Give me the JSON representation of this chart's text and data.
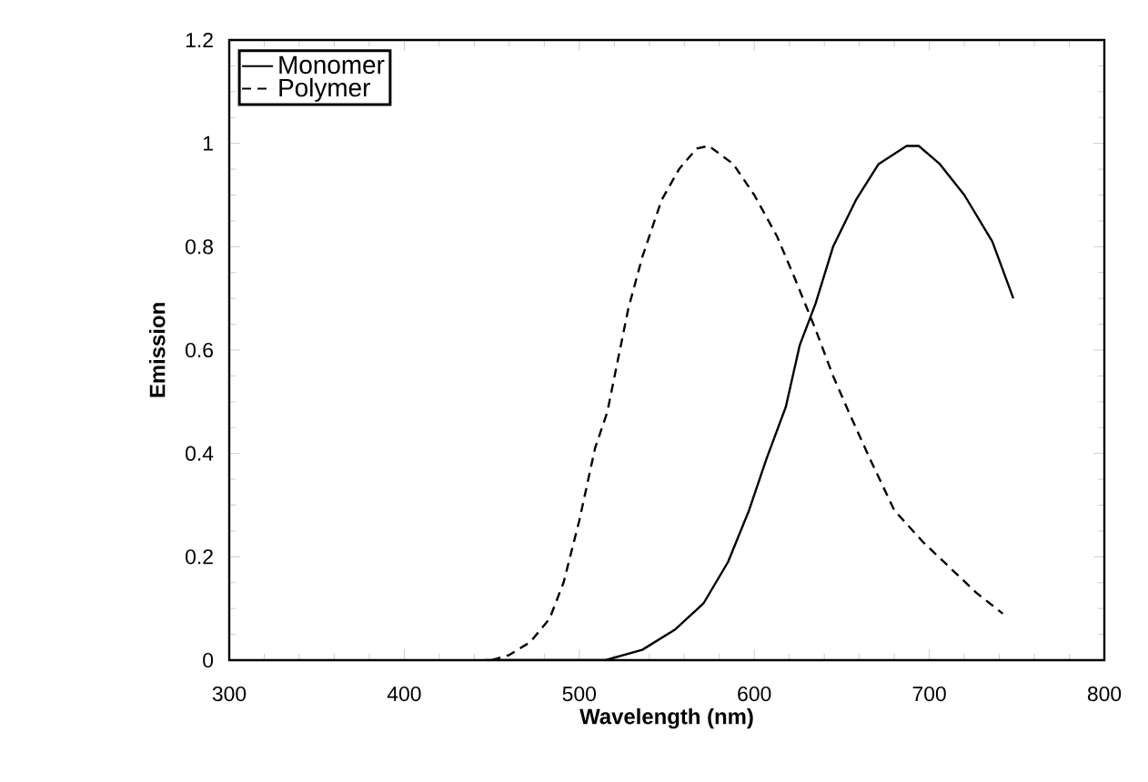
{
  "chart_data": {
    "type": "line",
    "xlabel": "Wavelength  (nm)",
    "ylabel": "Emission",
    "xlim": [
      300,
      800
    ],
    "ylim": [
      0,
      1.2
    ],
    "xticks": [
      300,
      400,
      500,
      600,
      700,
      800
    ],
    "yticks": [
      0,
      0.2,
      0.4,
      0.6,
      0.8,
      1,
      1.2
    ],
    "legend": "top left",
    "marker": "none",
    "grid": false,
    "series": [
      {
        "name": "Monomer",
        "color": "#000000",
        "line_style": "solid",
        "x": [
          446,
          515,
          536,
          555,
          571,
          585,
          597,
          607,
          618,
          626,
          635,
          645,
          658,
          671,
          687,
          694,
          706,
          720,
          736,
          748
        ],
        "values": [
          0,
          0,
          0.02,
          0.06,
          0.11,
          0.19,
          0.29,
          0.39,
          0.49,
          0.61,
          0.69,
          0.8,
          0.89,
          0.96,
          0.995,
          0.995,
          0.96,
          0.9,
          0.81,
          0.7
        ]
      },
      {
        "name": "Polymer",
        "color": "#000000",
        "line_style": "dashed",
        "x": [
          450,
          460,
          472,
          483,
          491,
          500,
          509,
          516,
          522,
          528,
          536,
          547,
          557,
          567,
          574,
          588,
          600,
          613,
          623,
          635,
          645,
          654,
          666,
          680,
          696,
          713,
          727,
          742
        ],
        "values": [
          0,
          0.01,
          0.035,
          0.08,
          0.15,
          0.27,
          0.41,
          0.48,
          0.58,
          0.68,
          0.78,
          0.89,
          0.95,
          0.99,
          0.995,
          0.96,
          0.9,
          0.82,
          0.74,
          0.64,
          0.55,
          0.48,
          0.39,
          0.29,
          0.23,
          0.175,
          0.13,
          0.09
        ]
      }
    ]
  }
}
